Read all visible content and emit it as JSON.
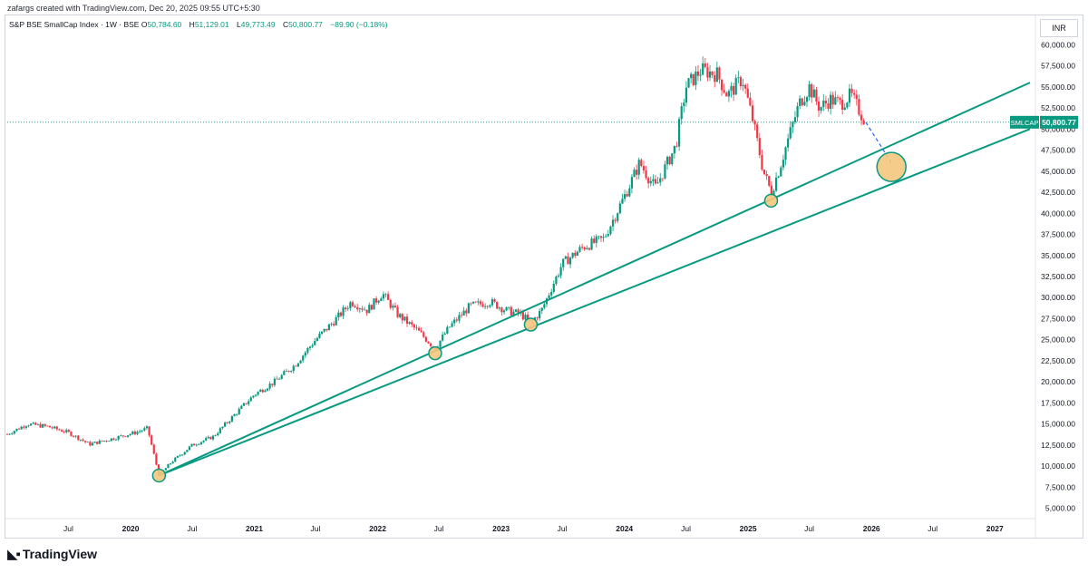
{
  "header": {
    "caption": "zafargs created with TradingView.com, Dec 20, 2025 09:55 UTC+5:30"
  },
  "legend": {
    "symbol": "S&P BSE SmallCap Index · 1W · BSE",
    "open_label": "O",
    "open": "50,784.60",
    "high_label": "H",
    "high": "51,129.01",
    "low_label": "L",
    "low": "49,773.49",
    "close_label": "C",
    "close": "50,800.77",
    "change": "−89.90 (−0.18%)"
  },
  "currency": "INR",
  "last_price": {
    "ticker": "SMLCAP",
    "value": "50,800.77"
  },
  "footer": {
    "brand": "TradingView",
    "icon": "tradingview-logo-icon"
  },
  "colors": {
    "up": "#089981",
    "down": "#f23645",
    "trendline": "#089981",
    "marker_fill": "#f5c77e",
    "marker_stroke": "#089981",
    "projection": "#2962ff"
  },
  "chart_data": {
    "type": "line",
    "title": "S&P BSE SmallCap Index",
    "interval": "1W",
    "exchange": "BSE",
    "grid": false,
    "ylim": [
      4000,
      61000
    ],
    "y_ticks": [
      5000,
      7500,
      10000,
      12500,
      15000,
      17500,
      20000,
      22500,
      25000,
      27500,
      30000,
      32500,
      35000,
      37500,
      40000,
      42500,
      45000,
      47500,
      50000,
      52500,
      55000,
      57500,
      60000
    ],
    "y_tick_labels": [
      "5,000.00",
      "7,500.00",
      "10,000.00",
      "12,500.00",
      "15,000.00",
      "17,500.00",
      "20,000.00",
      "22,500.00",
      "25,000.00",
      "27,500.00",
      "30,000.00",
      "32,500.00",
      "35,000.00",
      "37,500.00",
      "40,000.00",
      "42,500.00",
      "45,000.00",
      "47,500.00",
      "50,000.00",
      "52,500.00",
      "55,000.00",
      "57,500.00",
      "60,000.00"
    ],
    "x_ticks": [
      "2019-07",
      "2020-01",
      "2020-07",
      "2021-01",
      "2021-07",
      "2022-01",
      "2022-07",
      "2023-01",
      "2023-07",
      "2024-01",
      "2024-07",
      "2025-01",
      "2025-07",
      "2026-01",
      "2026-07",
      "2027-01"
    ],
    "x_tick_labels": [
      "Jul",
      "2020",
      "Jul",
      "2021",
      "Jul",
      "2022",
      "Jul",
      "2023",
      "Jul",
      "2024",
      "Jul",
      "2025",
      "Jul",
      "2026",
      "Jul",
      "2027"
    ],
    "xlim": [
      "2019-01-01",
      "2027-05-01"
    ],
    "series": [
      {
        "type": "price",
        "x": [
          "2019-01-01",
          "2019-03-01",
          "2019-05-01",
          "2019-07-01",
          "2019-09-01",
          "2019-11-01",
          "2020-01-15",
          "2020-02-20",
          "2020-03-25",
          "2020-05-01",
          "2020-07-01",
          "2020-09-01",
          "2020-11-01",
          "2021-01-01",
          "2021-03-01",
          "2021-05-01",
          "2021-07-01",
          "2021-09-01",
          "2021-10-15",
          "2021-12-01",
          "2022-01-15",
          "2022-03-01",
          "2022-05-01",
          "2022-06-20",
          "2022-08-01",
          "2022-10-01",
          "2022-12-01",
          "2023-01-15",
          "2023-03-01",
          "2023-03-30",
          "2023-05-01",
          "2023-07-01",
          "2023-09-01",
          "2023-11-01",
          "2024-01-01",
          "2024-02-15",
          "2024-04-01",
          "2024-06-01",
          "2024-07-01",
          "2024-08-15",
          "2024-10-01",
          "2024-11-01",
          "2024-12-15",
          "2025-01-15",
          "2025-02-15",
          "2025-03-10",
          "2025-04-01",
          "2025-05-01",
          "2025-06-01",
          "2025-07-01",
          "2025-08-01",
          "2025-09-01",
          "2025-10-01",
          "2025-11-01",
          "2025-12-15"
        ],
        "y": [
          13800,
          15000,
          14700,
          14000,
          12600,
          13200,
          14000,
          14500,
          8900,
          10500,
          12500,
          13500,
          16000,
          18500,
          20000,
          22000,
          25000,
          27500,
          29500,
          28500,
          30500,
          28000,
          26000,
          24000,
          26500,
          29000,
          29500,
          28500,
          28000,
          27000,
          28500,
          34000,
          36000,
          37000,
          42000,
          46000,
          43000,
          48000,
          55000,
          57000,
          56500,
          54000,
          56000,
          51000,
          45000,
          42500,
          45000,
          49000,
          53000,
          55000,
          52500,
          53500,
          53000,
          54000,
          50800
        ]
      },
      {
        "type": "trendline",
        "name": "",
        "x": [
          "2020-03-25",
          "2027-04-15"
        ],
        "y": [
          8900,
          55500
        ]
      },
      {
        "type": "trendline",
        "name": "",
        "x": [
          "2020-03-25",
          "2027-04-15"
        ],
        "y": [
          8900,
          50000
        ]
      },
      {
        "type": "projection",
        "x": [
          "2025-12-15",
          "2026-03-01"
        ],
        "y": [
          50800,
          46000
        ]
      }
    ],
    "markers": [
      {
        "x": "2020-03-25",
        "y": 8900,
        "size": "small"
      },
      {
        "x": "2022-06-20",
        "y": 23400,
        "size": "small"
      },
      {
        "x": "2023-03-30",
        "y": 26800,
        "size": "small"
      },
      {
        "x": "2025-03-10",
        "y": 41500,
        "size": "small"
      },
      {
        "x": "2026-03-01",
        "y": 45500,
        "size": "large"
      }
    ],
    "last_price_line": 50800.77
  }
}
